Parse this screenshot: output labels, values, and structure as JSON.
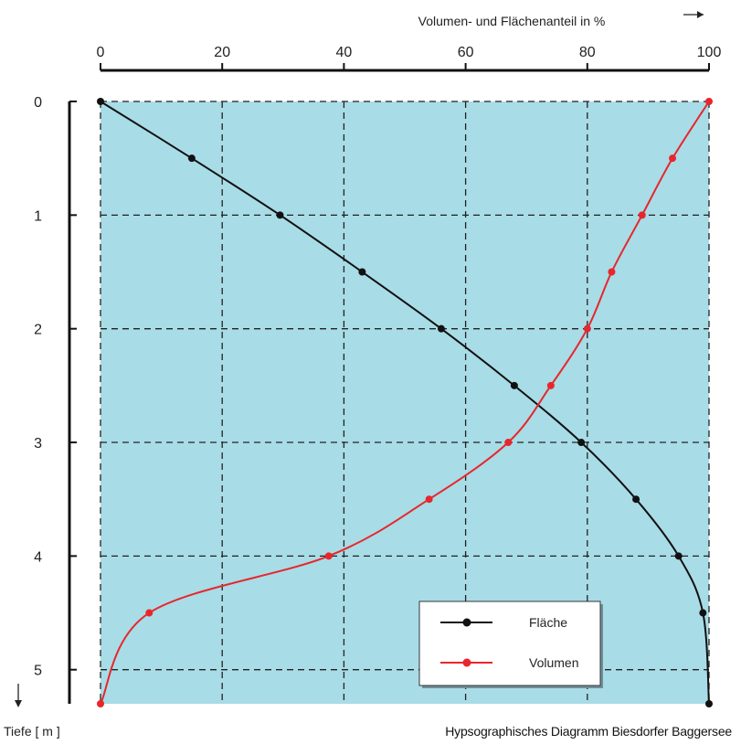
{
  "chart_data": {
    "type": "line",
    "top_axis_title": "Volumen- und Flächenanteil in %",
    "left_axis_title": "Tiefe [ m ]",
    "caption": "Hypsographisches Diagramm Biesdorfer Baggersee",
    "xlim": [
      0,
      100
    ],
    "ylim": [
      0,
      5.3
    ],
    "x_ticks": [
      0,
      20,
      40,
      60,
      80,
      100
    ],
    "y_ticks": [
      0,
      1,
      2,
      3,
      4,
      5
    ],
    "grid": true,
    "legend_position": "bottom-right",
    "colors": {
      "background": "#a8dce7",
      "grid": "#222222",
      "flaeche": "#111111",
      "volumen": "#e8262b"
    },
    "series": [
      {
        "name": "Fläche",
        "color": "#111111",
        "points": [
          {
            "x": 0,
            "y": 0
          },
          {
            "x": 15,
            "y": 0.5
          },
          {
            "x": 29.5,
            "y": 1
          },
          {
            "x": 43,
            "y": 1.5
          },
          {
            "x": 56,
            "y": 2
          },
          {
            "x": 68,
            "y": 2.5
          },
          {
            "x": 79,
            "y": 3
          },
          {
            "x": 88,
            "y": 3.5
          },
          {
            "x": 95,
            "y": 4
          },
          {
            "x": 99,
            "y": 4.5
          },
          {
            "x": 100,
            "y": 5.3
          }
        ]
      },
      {
        "name": "Volumen",
        "color": "#e8262b",
        "points": [
          {
            "x": 100,
            "y": 0
          },
          {
            "x": 94,
            "y": 0.5
          },
          {
            "x": 89,
            "y": 1
          },
          {
            "x": 84,
            "y": 1.5
          },
          {
            "x": 80,
            "y": 2
          },
          {
            "x": 74,
            "y": 2.5
          },
          {
            "x": 67,
            "y": 3
          },
          {
            "x": 54,
            "y": 3.5
          },
          {
            "x": 37.5,
            "y": 4
          },
          {
            "x": 8,
            "y": 4.5
          },
          {
            "x": 0,
            "y": 5.3
          }
        ]
      }
    ]
  }
}
